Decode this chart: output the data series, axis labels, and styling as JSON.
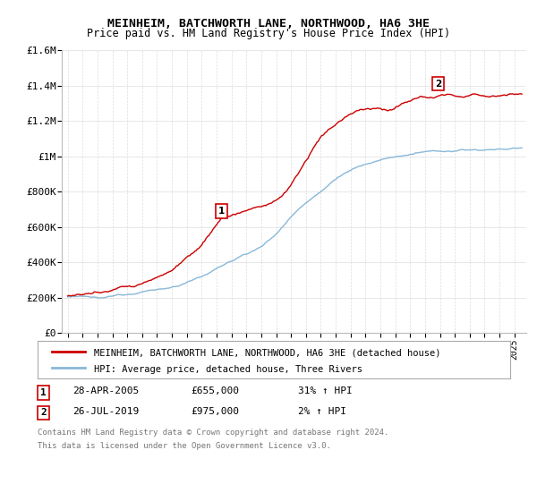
{
  "title": "MEINHEIM, BATCHWORTH LANE, NORTHWOOD, HA6 3HE",
  "subtitle": "Price paid vs. HM Land Registry's House Price Index (HPI)",
  "ylim": [
    0,
    1600000
  ],
  "yticks": [
    0,
    200000,
    400000,
    600000,
    800000,
    1000000,
    1200000,
    1400000,
    1600000
  ],
  "ytick_labels": [
    "£0",
    "£200K",
    "£400K",
    "£600K",
    "£800K",
    "£1M",
    "£1.2M",
    "£1.4M",
    "£1.6M"
  ],
  "hpi_color": "#89b8d8",
  "price_color": "#cc0000",
  "marker1_year": 2005.32,
  "marker1_price": 655000,
  "marker2_year": 2019.57,
  "marker2_price": 975000,
  "legend_line1": "MEINHEIM, BATCHWORTH LANE, NORTHWOOD, HA6 3HE (detached house)",
  "legend_line2": "HPI: Average price, detached house, Three Rivers",
  "footnote1": "Contains HM Land Registry data © Crown copyright and database right 2024.",
  "footnote2": "This data is licensed under the Open Government Licence v3.0.",
  "background_color": "#ffffff",
  "grid_color": "#dddddd"
}
